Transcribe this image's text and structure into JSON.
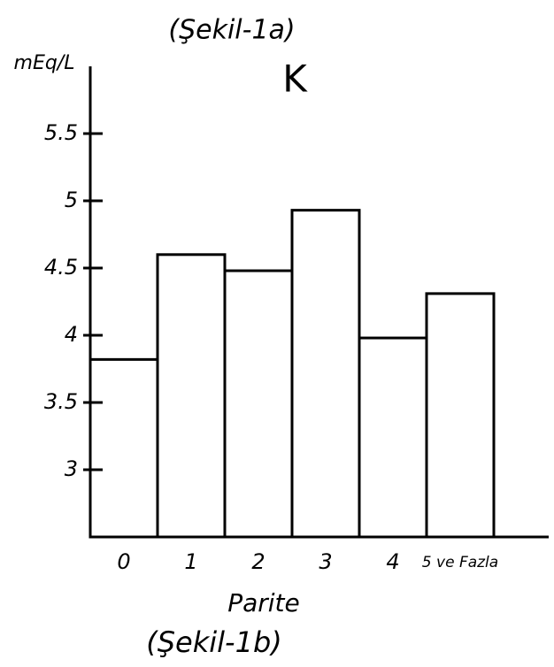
{
  "chart_data": {
    "type": "bar",
    "title": "(Şekil-1a)",
    "subtitle": "K",
    "ylabel": "mEq/L",
    "xlabel": "Parite",
    "caption": "(Şekil-1b)",
    "categories": [
      "0",
      "1",
      "2",
      "3",
      "4",
      "5 ve Fazla"
    ],
    "values": [
      3.82,
      4.6,
      4.48,
      4.93,
      3.98,
      4.31
    ],
    "color": "#ffffff",
    "ylim": [
      2.5,
      6.0
    ],
    "yticks": [
      3,
      3.5,
      4,
      4.5,
      5,
      5.5
    ]
  }
}
